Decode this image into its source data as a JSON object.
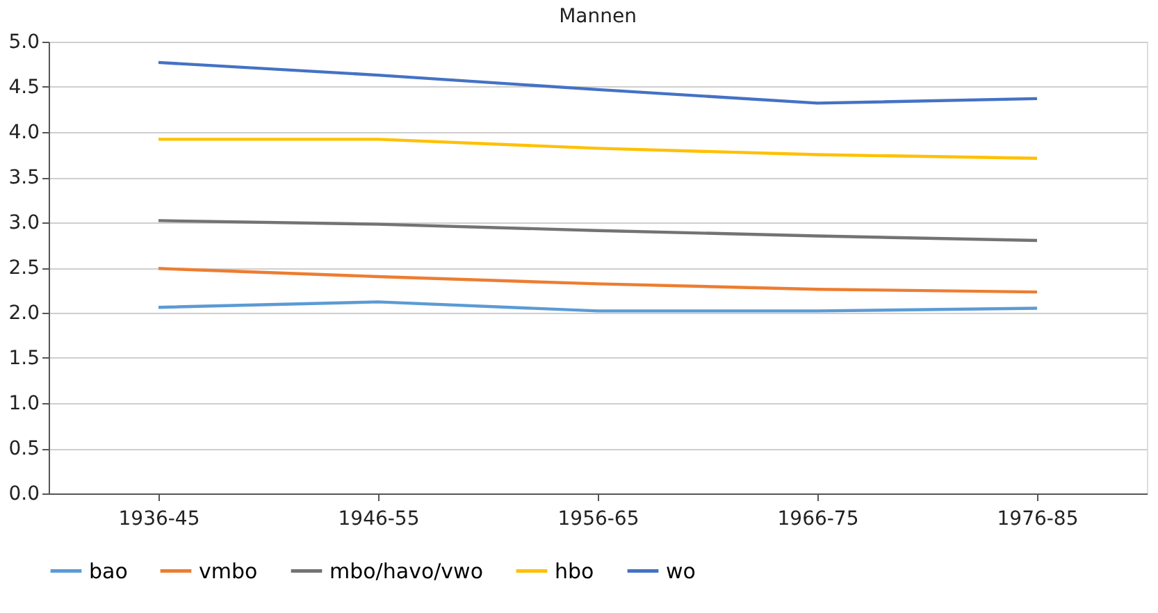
{
  "chart_data": {
    "type": "line",
    "title": "Mannen",
    "categories": [
      "1936-45",
      "1946-55",
      "1956-65",
      "1966-75",
      "1976-85"
    ],
    "series": [
      {
        "name": "bao",
        "color": "#5b9bd5",
        "values": [
          2.06,
          2.12,
          2.02,
          2.02,
          2.05
        ]
      },
      {
        "name": "vmbo",
        "color": "#ed7d31",
        "values": [
          2.49,
          2.4,
          2.32,
          2.26,
          2.23
        ]
      },
      {
        "name": "mbo/havo/vwo",
        "color": "#737373",
        "values": [
          3.02,
          2.98,
          2.91,
          2.85,
          2.8
        ]
      },
      {
        "name": "hbo",
        "color": "#ffc000",
        "values": [
          3.92,
          3.92,
          3.82,
          3.75,
          3.71
        ]
      },
      {
        "name": "wo",
        "color": "#4472c4",
        "values": [
          4.77,
          4.63,
          4.47,
          4.32,
          4.37
        ]
      }
    ],
    "ylim": [
      0,
      5
    ],
    "yticks": [
      {
        "value": 0,
        "label": "0.0"
      },
      0.5,
      {
        "value": 1,
        "label": "1.0"
      },
      1.5,
      {
        "value": 2,
        "label": "2.0"
      },
      2.5,
      {
        "value": 3,
        "label": "3.0"
      },
      3.5,
      {
        "value": 4,
        "label": "4.0"
      },
      4.5,
      {
        "value": 5,
        "label": "5.0"
      }
    ],
    "grid": "y",
    "legend": "bottom",
    "marker": "none",
    "line_style": "solid"
  }
}
